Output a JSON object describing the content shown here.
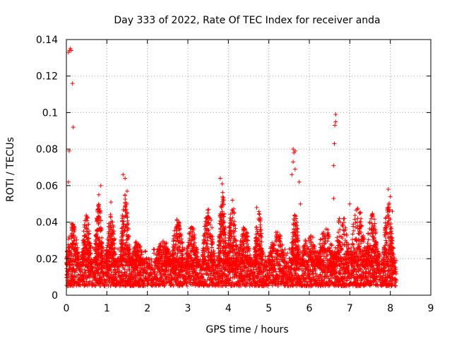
{
  "chart_data": {
    "type": "scatter",
    "title": "Day 333 of 2022, Rate Of TEC Index for receiver anda",
    "xlabel": "GPS time / hours",
    "ylabel": "ROTI / TECUs",
    "xlim": [
      0,
      9
    ],
    "ylim": [
      0,
      0.14
    ],
    "xticks": [
      "0",
      "1",
      "2",
      "3",
      "4",
      "5",
      "6",
      "7",
      "8",
      "9"
    ],
    "yticks": [
      "0",
      "0.02",
      "0.04",
      "0.06",
      "0.08",
      "0.1",
      "0.12",
      "0.14"
    ],
    "grid": true,
    "marker": "+",
    "color": "#ff0000",
    "series": [
      {
        "name": "ROTI",
        "x_range": [
          0,
          8.15
        ],
        "baseline": {
          "min": 0.005,
          "typical": 0.013,
          "upper": 0.02
        },
        "notable_points": [
          {
            "x": 0.05,
            "y": 0.133
          },
          {
            "x": 0.08,
            "y": 0.134
          },
          {
            "x": 0.1,
            "y": 0.135
          },
          {
            "x": 0.12,
            "y": 0.134
          },
          {
            "x": 0.15,
            "y": 0.116
          },
          {
            "x": 0.17,
            "y": 0.092
          },
          {
            "x": 0.07,
            "y": 0.079
          },
          {
            "x": 0.05,
            "y": 0.062
          },
          {
            "x": 0.8,
            "y": 0.055
          },
          {
            "x": 0.85,
            "y": 0.06
          },
          {
            "x": 1.1,
            "y": 0.051
          },
          {
            "x": 1.4,
            "y": 0.066
          },
          {
            "x": 1.45,
            "y": 0.064
          },
          {
            "x": 1.5,
            "y": 0.057
          },
          {
            "x": 3.8,
            "y": 0.064
          },
          {
            "x": 3.85,
            "y": 0.061
          },
          {
            "x": 4.1,
            "y": 0.052
          },
          {
            "x": 4.7,
            "y": 0.048
          },
          {
            "x": 5.6,
            "y": 0.08
          },
          {
            "x": 5.62,
            "y": 0.078
          },
          {
            "x": 5.65,
            "y": 0.079
          },
          {
            "x": 5.6,
            "y": 0.073
          },
          {
            "x": 5.65,
            "y": 0.069
          },
          {
            "x": 5.57,
            "y": 0.066
          },
          {
            "x": 5.75,
            "y": 0.062
          },
          {
            "x": 5.78,
            "y": 0.05
          },
          {
            "x": 6.65,
            "y": 0.099
          },
          {
            "x": 6.65,
            "y": 0.095
          },
          {
            "x": 6.63,
            "y": 0.093
          },
          {
            "x": 6.62,
            "y": 0.083
          },
          {
            "x": 6.6,
            "y": 0.071
          },
          {
            "x": 6.6,
            "y": 0.053
          },
          {
            "x": 7.0,
            "y": 0.05
          },
          {
            "x": 7.95,
            "y": 0.058
          },
          {
            "x": 8.0,
            "y": 0.054
          },
          {
            "x": 8.05,
            "y": 0.046
          }
        ],
        "bursts": [
          {
            "center": 0.15,
            "width": 0.15,
            "peak": 0.04
          },
          {
            "center": 0.5,
            "width": 0.12,
            "peak": 0.044
          },
          {
            "center": 0.8,
            "width": 0.1,
            "peak": 0.05
          },
          {
            "center": 1.1,
            "width": 0.12,
            "peak": 0.045
          },
          {
            "center": 1.45,
            "width": 0.12,
            "peak": 0.055
          },
          {
            "center": 1.75,
            "width": 0.15,
            "peak": 0.03
          },
          {
            "center": 2.4,
            "width": 0.2,
            "peak": 0.03
          },
          {
            "center": 2.75,
            "width": 0.15,
            "peak": 0.042
          },
          {
            "center": 3.1,
            "width": 0.15,
            "peak": 0.038
          },
          {
            "center": 3.5,
            "width": 0.15,
            "peak": 0.048
          },
          {
            "center": 3.85,
            "width": 0.1,
            "peak": 0.058
          },
          {
            "center": 4.1,
            "width": 0.12,
            "peak": 0.05
          },
          {
            "center": 4.4,
            "width": 0.15,
            "peak": 0.038
          },
          {
            "center": 4.75,
            "width": 0.1,
            "peak": 0.047
          },
          {
            "center": 5.2,
            "width": 0.2,
            "peak": 0.035
          },
          {
            "center": 5.65,
            "width": 0.1,
            "peak": 0.045
          },
          {
            "center": 6.0,
            "width": 0.2,
            "peak": 0.035
          },
          {
            "center": 6.4,
            "width": 0.2,
            "peak": 0.038
          },
          {
            "center": 6.8,
            "width": 0.2,
            "peak": 0.045
          },
          {
            "center": 7.2,
            "width": 0.2,
            "peak": 0.048
          },
          {
            "center": 7.55,
            "width": 0.15,
            "peak": 0.045
          },
          {
            "center": 7.95,
            "width": 0.12,
            "peak": 0.052
          }
        ]
      }
    ]
  }
}
